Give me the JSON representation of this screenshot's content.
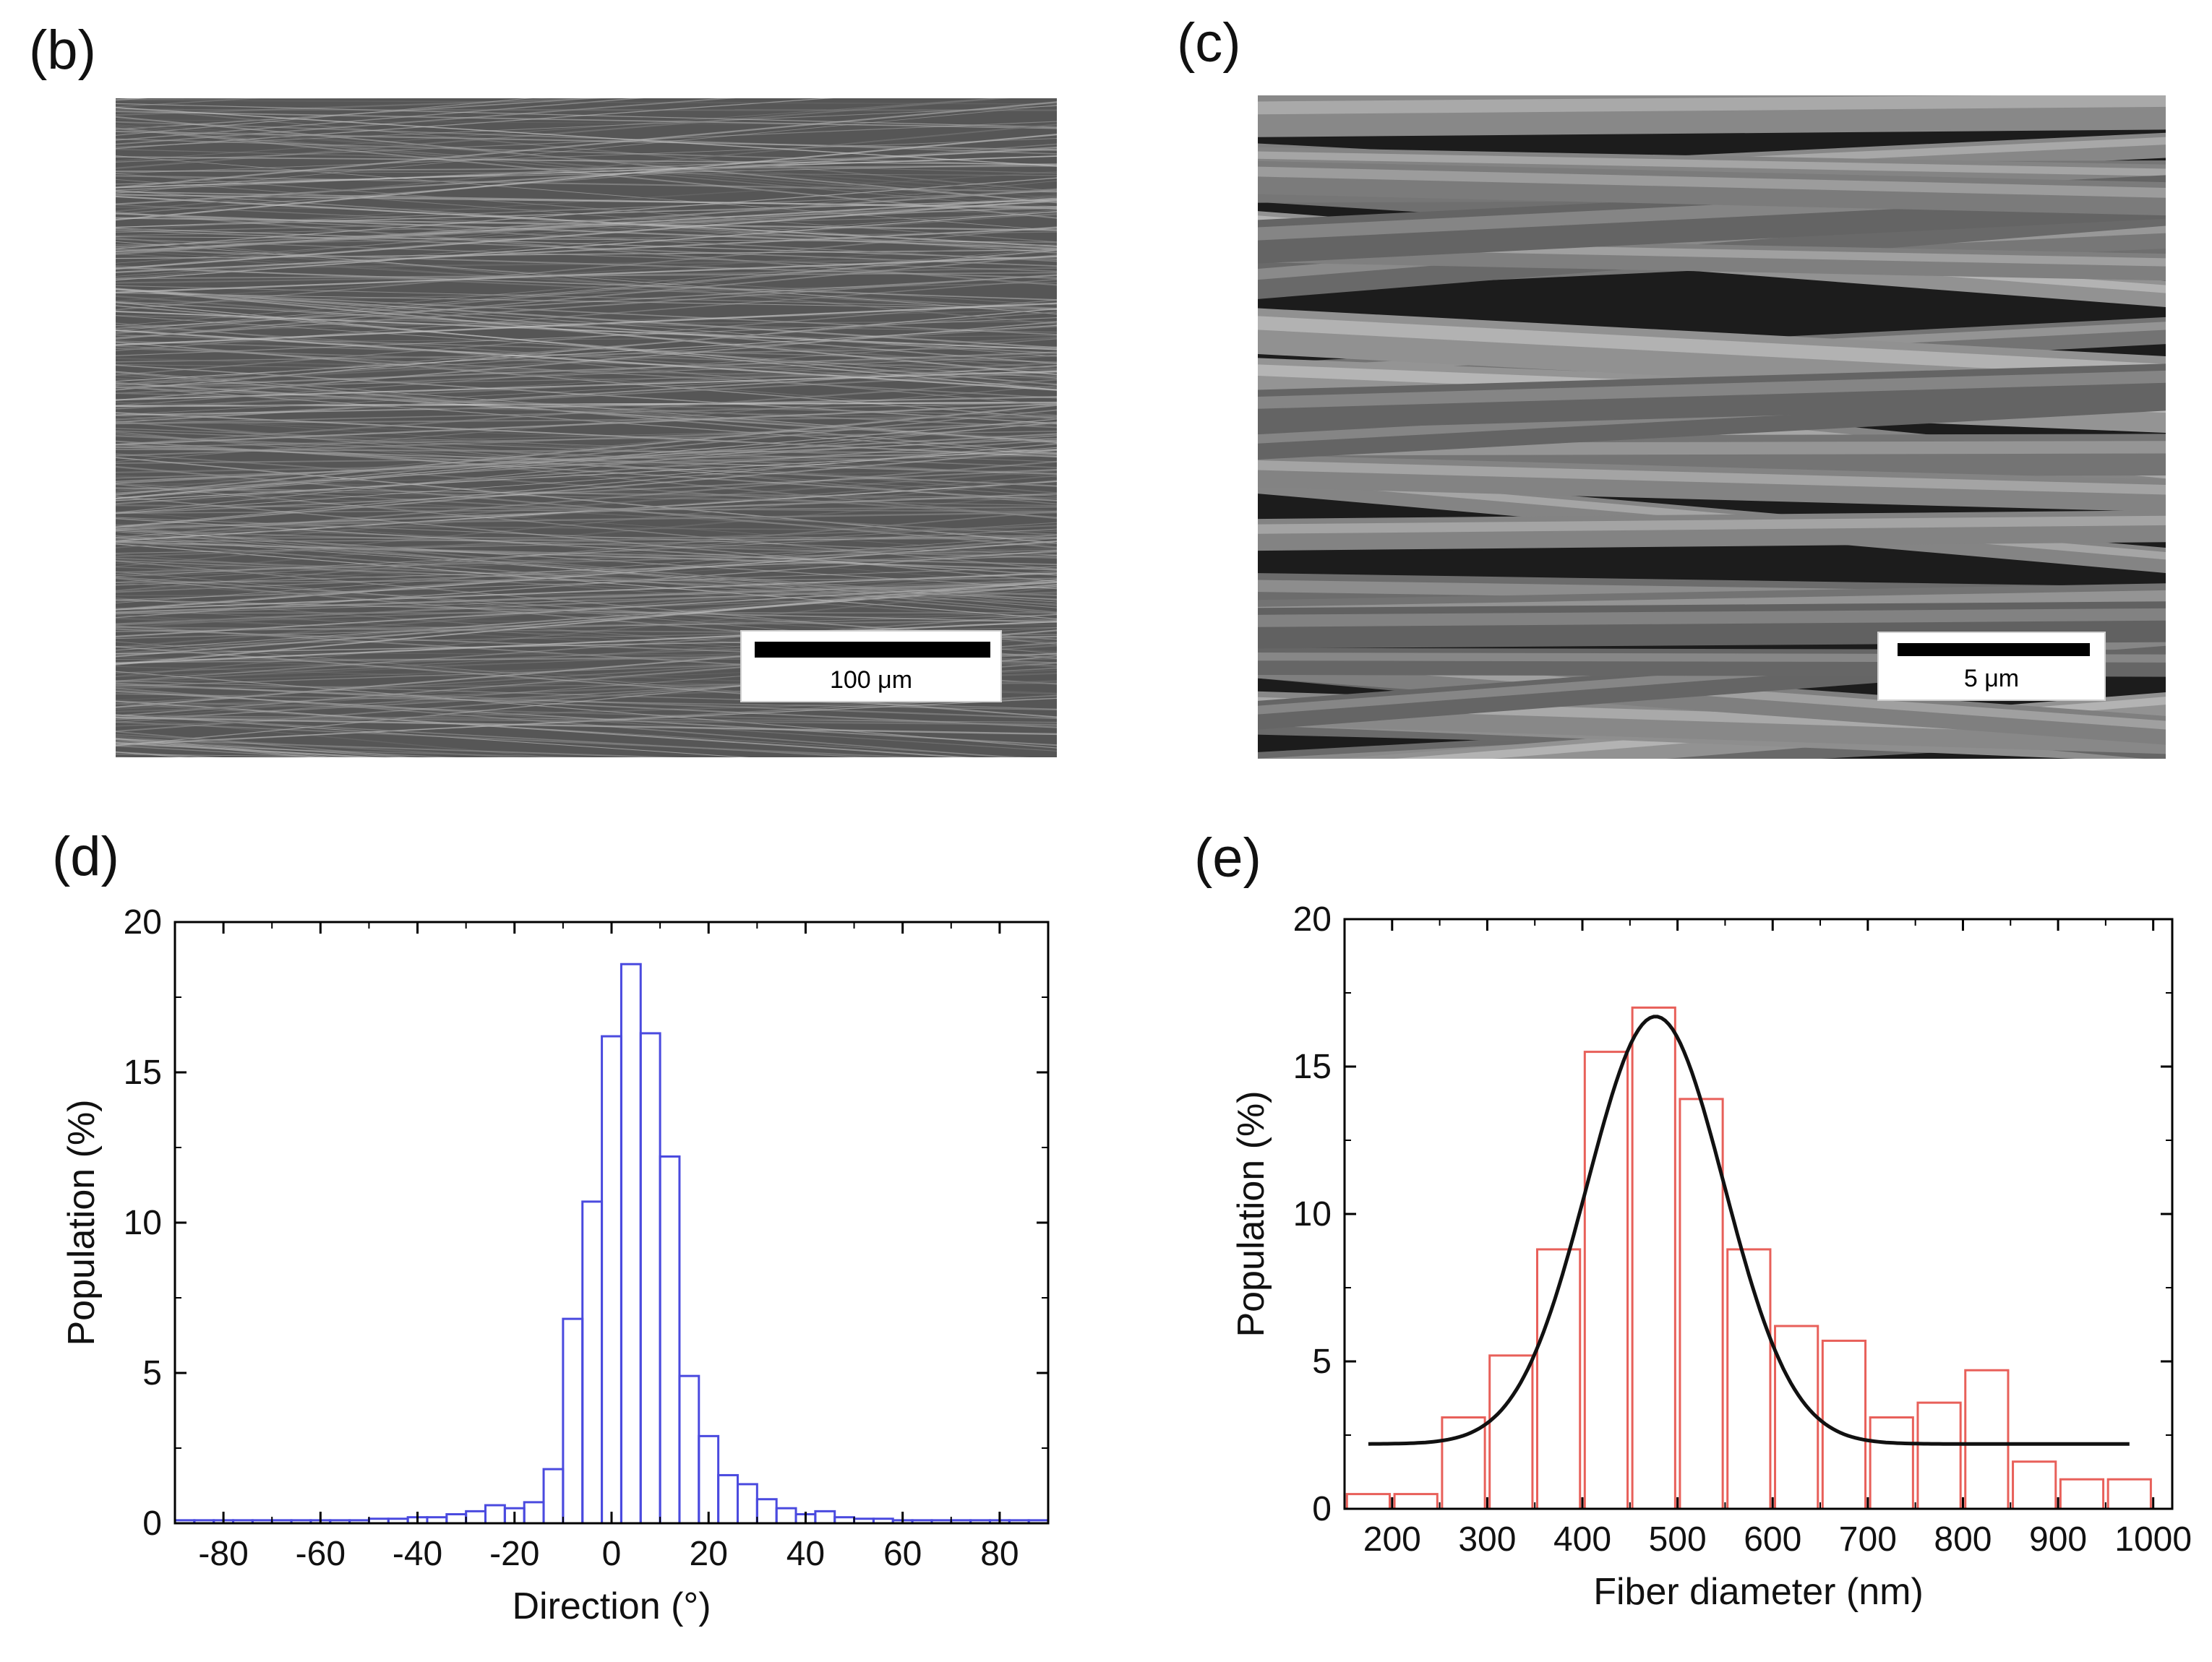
{
  "panels": {
    "b": {
      "label": "(b)",
      "scale_bar": "100 μm"
    },
    "c": {
      "label": "(c)",
      "scale_bar": "5 μm"
    },
    "d": {
      "label": "(d)"
    },
    "e": {
      "label": "(e)"
    }
  },
  "colors": {
    "hist_d": "#4a4adf",
    "hist_e": "#e8605a",
    "fit_e": "#111111",
    "sem_bg": "#555555"
  },
  "chart_data": [
    {
      "panel": "d",
      "type": "bar",
      "xlabel": "Direction (°)",
      "ylabel": "Population (%)",
      "xlim": [
        -90,
        90
      ],
      "ylim": [
        0,
        20
      ],
      "xticks": [
        -80,
        -60,
        -40,
        -20,
        0,
        20,
        40,
        60,
        80
      ],
      "yticks": [
        0,
        5,
        10,
        15,
        20
      ],
      "bin_width": 4,
      "bin_centers": [
        -88,
        -84,
        -80,
        -76,
        -72,
        -68,
        -64,
        -60,
        -56,
        -52,
        -48,
        -44,
        -40,
        -36,
        -32,
        -28,
        -24,
        -20,
        -16,
        -12,
        -8,
        -4,
        0,
        4,
        8,
        12,
        16,
        20,
        24,
        28,
        32,
        36,
        40,
        44,
        48,
        52,
        56,
        60,
        64,
        68,
        72,
        76,
        80,
        84,
        88
      ],
      "values": [
        0.1,
        0.1,
        0.1,
        0.1,
        0.1,
        0.1,
        0.1,
        0.1,
        0.1,
        0.1,
        0.15,
        0.15,
        0.2,
        0.2,
        0.3,
        0.4,
        0.6,
        0.5,
        0.7,
        1.8,
        6.8,
        10.7,
        16.2,
        18.6,
        16.3,
        12.2,
        4.9,
        2.9,
        1.6,
        1.3,
        0.8,
        0.5,
        0.3,
        0.4,
        0.2,
        0.15,
        0.15,
        0.1,
        0.1,
        0.1,
        0.1,
        0.1,
        0.1,
        0.1,
        0.1
      ]
    },
    {
      "panel": "e",
      "type": "bar",
      "xlabel": "Fiber diameter (nm)",
      "ylabel": "Population (%)",
      "xlim": [
        150,
        1020
      ],
      "ylim": [
        0,
        20
      ],
      "xticks": [
        200,
        300,
        400,
        500,
        600,
        700,
        800,
        900,
        1000
      ],
      "yticks": [
        0,
        5,
        10,
        15,
        20
      ],
      "bin_width": 45,
      "bin_centers": [
        175,
        225,
        275,
        325,
        375,
        425,
        475,
        525,
        575,
        625,
        675,
        725,
        775,
        825,
        875,
        925,
        975
      ],
      "values": [
        0.5,
        0.5,
        3.1,
        5.2,
        8.8,
        15.5,
        17.0,
        13.9,
        8.8,
        6.2,
        5.7,
        3.1,
        3.6,
        4.7,
        1.6,
        1.0,
        1.0
      ],
      "fit": {
        "type": "gaussian",
        "baseline": 2.2,
        "amplitude": 14.5,
        "center": 477,
        "sigma": 72,
        "x_range": [
          175,
          975
        ]
      }
    }
  ]
}
